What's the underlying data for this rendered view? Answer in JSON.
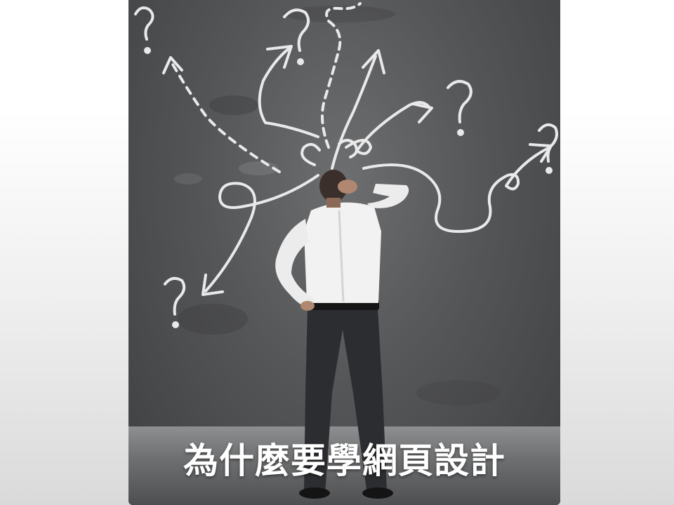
{
  "slide": {
    "title": "為什麼要學網頁設計"
  }
}
